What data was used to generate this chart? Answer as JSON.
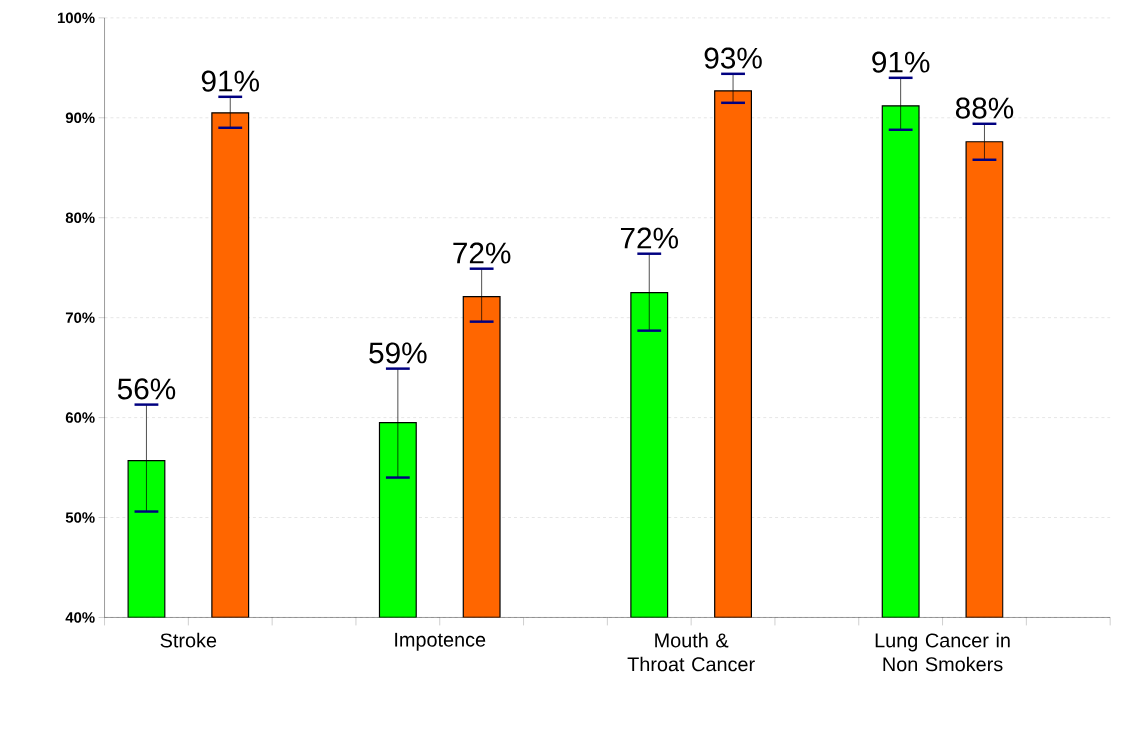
{
  "chart_data": {
    "type": "bar",
    "categories": [
      "Stroke",
      "Impotence",
      "Mouth & Throat Cancer",
      "Lung Cancer in Non Smokers"
    ],
    "series": [
      {
        "color": "#00ff00",
        "values": [
          55.7,
          59.5,
          72.5,
          91.2
        ],
        "errors": [
          [
            50.6,
            61.3
          ],
          [
            54.0,
            64.9
          ],
          [
            68.7,
            76.4
          ],
          [
            88.8,
            94.0
          ]
        ],
        "value_labels": [
          "56%",
          "59%",
          "72%",
          "91%"
        ]
      },
      {
        "color": "#ff6600",
        "values": [
          90.5,
          72.1,
          92.7,
          87.6
        ],
        "errors": [
          [
            89.0,
            92.1
          ],
          [
            69.6,
            74.9
          ],
          [
            91.5,
            94.4
          ],
          [
            85.8,
            89.4
          ]
        ],
        "value_labels": [
          "91%",
          "72%",
          "93%",
          "88%"
        ]
      }
    ],
    "ylim": [
      40,
      100
    ],
    "yticks": [
      {
        "value": 40,
        "label": "40%"
      },
      {
        "value": 50,
        "label": "50%"
      },
      {
        "value": 60,
        "label": "60%"
      },
      {
        "value": 70,
        "label": "70%"
      },
      {
        "value": 80,
        "label": "80%"
      },
      {
        "value": 90,
        "label": "90%"
      },
      {
        "value": 100,
        "label": "100%"
      }
    ],
    "grid": "y"
  }
}
